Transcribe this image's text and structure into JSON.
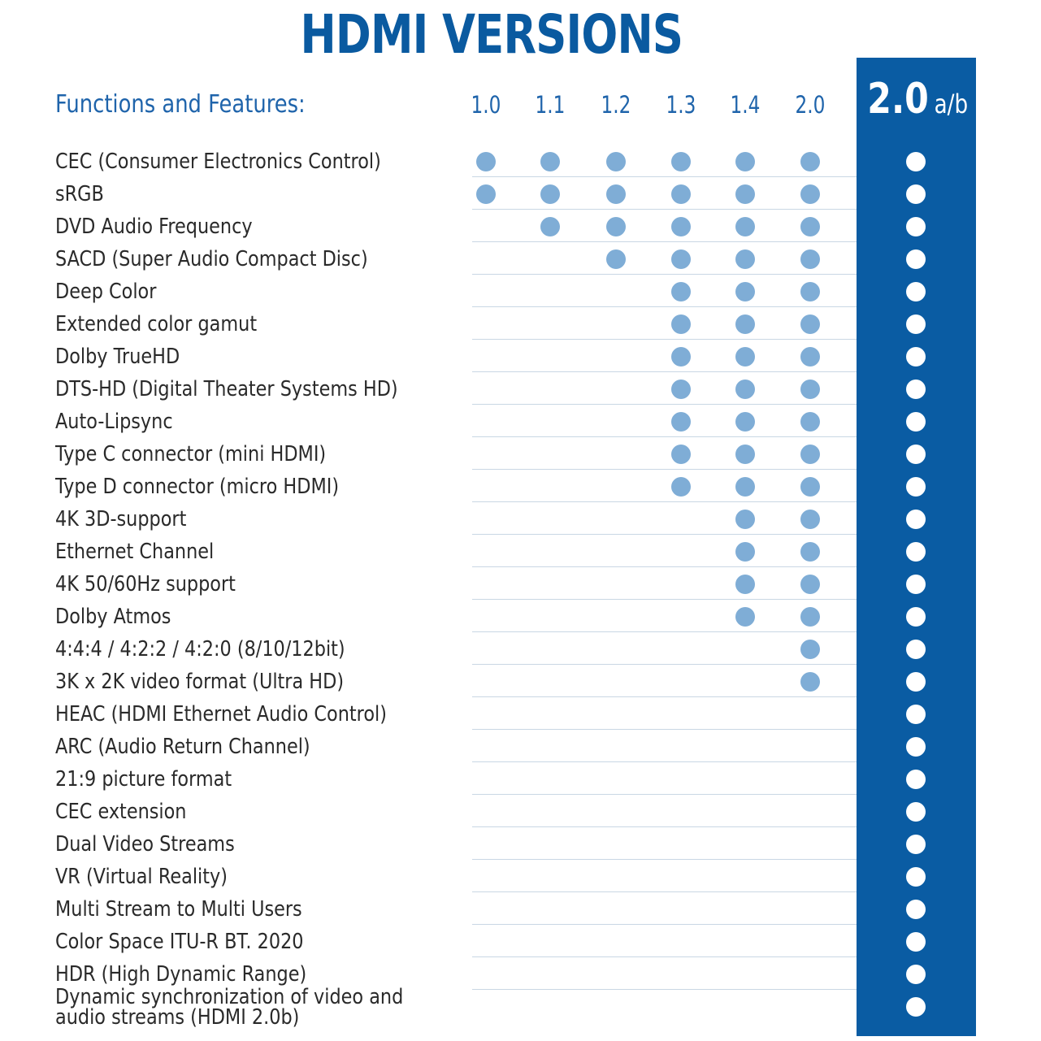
{
  "title": "HDMI VERSIONS",
  "features_heading": "Functions and Features:",
  "versions": [
    "1.0",
    "1.1",
    "1.2",
    "1.3",
    "1.4",
    "2.0"
  ],
  "highlight_version": {
    "main": "2.0",
    "sub": "a/b"
  },
  "colors": {
    "title": "#0a5aa0",
    "highlight_column": "#0a5ca3",
    "dot": "#7fadd6",
    "dot_highlight": "#ffffff",
    "heading": "#1f64ab"
  },
  "features": [
    {
      "label": "CEC (Consumer Electronics Control)",
      "since": "1.0"
    },
    {
      "label": "sRGB",
      "since": "1.0"
    },
    {
      "label": "DVD Audio Frequency",
      "since": "1.1"
    },
    {
      "label": "SACD (Super Audio Compact Disc)",
      "since": "1.2"
    },
    {
      "label": "Deep Color",
      "since": "1.3"
    },
    {
      "label": "Extended color gamut",
      "since": "1.3"
    },
    {
      "label": "Dolby TrueHD",
      "since": "1.3"
    },
    {
      "label": "DTS-HD (Digital Theater Systems HD)",
      "since": "1.3"
    },
    {
      "label": "Auto-Lipsync",
      "since": "1.3"
    },
    {
      "label": "Type C connector (mini HDMI)",
      "since": "1.3"
    },
    {
      "label": "Type D connector (micro HDMI)",
      "since": "1.3"
    },
    {
      "label": "4K 3D-support",
      "since": "1.4"
    },
    {
      "label": "Ethernet Channel",
      "since": "1.4"
    },
    {
      "label": "4K 50/60Hz support",
      "since": "1.4"
    },
    {
      "label": "Dolby Atmos",
      "since": "1.4"
    },
    {
      "label": "4:4:4 / 4:2:2 / 4:2:0   (8/10/12bit)",
      "since": "2.0"
    },
    {
      "label": "3K x 2K video format (Ultra HD)",
      "since": "2.0"
    },
    {
      "label": "HEAC (HDMI Ethernet Audio Control)",
      "since": "2.0a/b"
    },
    {
      "label": "ARC (Audio Return Channel)",
      "since": "2.0a/b"
    },
    {
      "label": "21:9 picture format",
      "since": "2.0a/b"
    },
    {
      "label": "CEC extension",
      "since": "2.0a/b"
    },
    {
      "label": "Dual Video Streams",
      "since": "2.0a/b"
    },
    {
      "label": "VR (Virtual Reality)",
      "since": "2.0a/b"
    },
    {
      "label": "Multi Stream to Multi Users",
      "since": "2.0a/b"
    },
    {
      "label": "Color Space ITU-R BT. 2020",
      "since": "2.0a/b"
    },
    {
      "label": "HDR (High Dynamic Range)",
      "since": "2.0a/b"
    },
    {
      "label": "Dynamic synchronization of video and audio streams (HDMI 2.0b)",
      "since": "2.0a/b"
    }
  ]
}
